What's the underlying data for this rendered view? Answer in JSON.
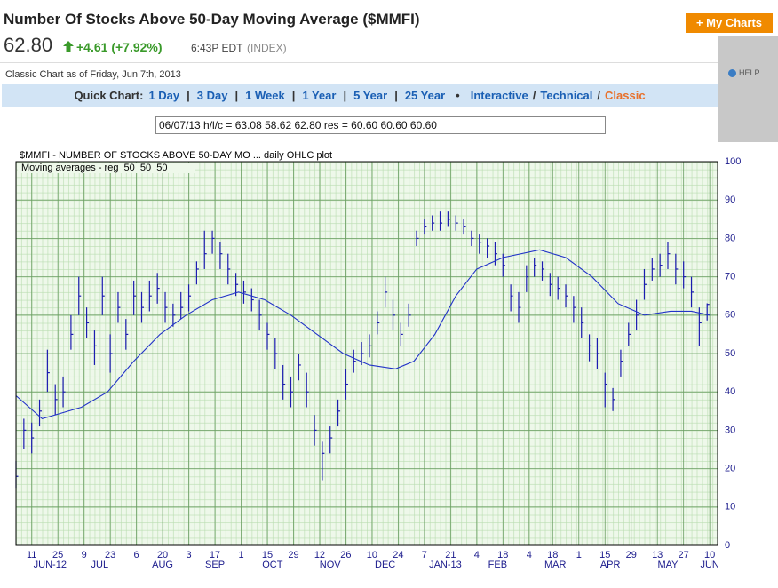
{
  "header": {
    "title": "Number Of Stocks Above 50-Day Moving Average ($MMFI)",
    "price": "62.80",
    "change": "+4.61 (+7.92%)",
    "time": "6:43P EDT",
    "exchange": "(INDEX)",
    "my_charts": "+ My Charts",
    "as_of": "Classic Chart as of Friday, Jun 7th, 2013",
    "help": "HELP"
  },
  "quick_chart": {
    "label": "Quick Chart:",
    "links": [
      "1 Day",
      "3 Day",
      "1 Week",
      "1 Year",
      "5 Year",
      "25 Year"
    ],
    "link_separator": "|",
    "bullet": "•",
    "views": [
      "Interactive",
      "Technical",
      "Classic"
    ],
    "view_separator": "/"
  },
  "info_box": "06/07/13 h/l/c = 63.08 58.62 62.80 res = 60.60 60.60 60.60",
  "chart_data": {
    "type": "ohlc",
    "title": "$MMFI - NUMBER OF STOCKS ABOVE 50-DAY MO ... daily OHLC plot",
    "subtitle": "Moving averages - reg  50  50  50",
    "xlim": [
      0,
      268
    ],
    "ylim": [
      0,
      100
    ],
    "yticks": [
      0,
      10,
      20,
      30,
      40,
      50,
      60,
      70,
      80,
      90,
      100
    ],
    "grid": true,
    "color": "#1c1cb0",
    "xticks": [
      {
        "value": 6,
        "label": "11"
      },
      {
        "value": 16,
        "label": "25"
      },
      {
        "value": 26,
        "label": "9"
      },
      {
        "value": 36,
        "label": "23"
      },
      {
        "value": 46,
        "label": "6"
      },
      {
        "value": 56,
        "label": "20"
      },
      {
        "value": 66,
        "label": "3"
      },
      {
        "value": 76,
        "label": "17"
      },
      {
        "value": 86,
        "label": "1"
      },
      {
        "value": 96,
        "label": "15"
      },
      {
        "value": 106,
        "label": "29"
      },
      {
        "value": 116,
        "label": "12"
      },
      {
        "value": 126,
        "label": "26"
      },
      {
        "value": 136,
        "label": "10"
      },
      {
        "value": 146,
        "label": "24"
      },
      {
        "value": 156,
        "label": "7"
      },
      {
        "value": 166,
        "label": "21"
      },
      {
        "value": 176,
        "label": "4"
      },
      {
        "value": 186,
        "label": "18"
      },
      {
        "value": 196,
        "label": "4"
      },
      {
        "value": 205,
        "label": "18"
      },
      {
        "value": 215,
        "label": "1"
      },
      {
        "value": 225,
        "label": "15"
      },
      {
        "value": 235,
        "label": "29"
      },
      {
        "value": 245,
        "label": "13"
      },
      {
        "value": 255,
        "label": "27"
      },
      {
        "value": 265,
        "label": "10"
      }
    ],
    "months": [
      {
        "value": 13,
        "label": "JUN-12"
      },
      {
        "value": 32,
        "label": "JUL"
      },
      {
        "value": 56,
        "label": "AUG"
      },
      {
        "value": 76,
        "label": "SEP"
      },
      {
        "value": 98,
        "label": "OCT"
      },
      {
        "value": 120,
        "label": "NOV"
      },
      {
        "value": 141,
        "label": "DEC"
      },
      {
        "value": 164,
        "label": "JAN-13"
      },
      {
        "value": 184,
        "label": "FEB"
      },
      {
        "value": 206,
        "label": "MAR"
      },
      {
        "value": 227,
        "label": "APR"
      },
      {
        "value": 249,
        "label": "MAY"
      },
      {
        "value": 265,
        "label": "JUN"
      }
    ],
    "x": [
      0,
      3,
      6,
      9,
      12,
      15,
      18,
      21,
      24,
      27,
      30,
      33,
      36,
      39,
      42,
      45,
      48,
      51,
      54,
      57,
      60,
      63,
      66,
      69,
      72,
      75,
      78,
      81,
      84,
      87,
      90,
      93,
      96,
      99,
      102,
      105,
      108,
      111,
      114,
      117,
      120,
      123,
      126,
      129,
      132,
      135,
      138,
      141,
      144,
      147,
      150,
      153,
      156,
      159,
      162,
      165,
      168,
      171,
      174,
      177,
      180,
      183,
      186,
      189,
      192,
      195,
      198,
      201,
      204,
      207,
      210,
      213,
      216,
      219,
      222,
      225,
      228,
      231,
      234,
      237,
      240,
      243,
      246,
      249,
      252,
      255,
      258,
      261,
      264
    ],
    "high": [
      22,
      33,
      32,
      38,
      51,
      42,
      44,
      60,
      70,
      62,
      56,
      70,
      55,
      66,
      59,
      69,
      66,
      69,
      71,
      66,
      63,
      66,
      68,
      74,
      82,
      82,
      79,
      76,
      71,
      69,
      67,
      64,
      58,
      54,
      47,
      44,
      50,
      45,
      34,
      27,
      31,
      38,
      46,
      51,
      53,
      55,
      61,
      70,
      64,
      58,
      63,
      82,
      85,
      86,
      87,
      87,
      86,
      85,
      82,
      81,
      80,
      79,
      76,
      68,
      66,
      73,
      75,
      74,
      71,
      70,
      68,
      65,
      62,
      55,
      54,
      45,
      41,
      51,
      58,
      64,
      72,
      75,
      76,
      79,
      76,
      74,
      70,
      62,
      63.08
    ],
    "low": [
      15,
      25,
      24,
      31,
      40,
      34,
      36,
      51,
      60,
      54,
      47,
      60,
      45,
      58,
      51,
      60,
      58,
      61,
      63,
      58,
      57,
      59,
      61,
      68,
      72,
      76,
      72,
      68,
      65,
      63,
      61,
      56,
      51,
      46,
      38,
      36,
      43,
      36,
      26,
      17,
      24,
      31,
      38,
      45,
      47,
      49,
      55,
      62,
      56,
      52,
      57,
      78,
      81,
      82,
      82,
      83,
      82,
      81,
      78,
      76,
      75,
      73,
      70,
      61,
      58,
      66,
      70,
      69,
      65,
      64,
      62,
      58,
      54,
      48,
      46,
      36,
      35,
      44,
      52,
      56,
      64,
      69,
      70,
      72,
      68,
      67,
      62,
      52,
      58.62
    ],
    "close": [
      18,
      30,
      28,
      35,
      45,
      38,
      40,
      55,
      65,
      58,
      52,
      65,
      50,
      62,
      55,
      65,
      62,
      65,
      67,
      62,
      60,
      62,
      65,
      72,
      76,
      80,
      76,
      72,
      68,
      66,
      64,
      60,
      55,
      50,
      42,
      40,
      47,
      40,
      30,
      24,
      28,
      35,
      42,
      48,
      50,
      52,
      58,
      66,
      60,
      55,
      60,
      80,
      83,
      84,
      84,
      85,
      84,
      83,
      80,
      79,
      78,
      76,
      73,
      65,
      62,
      70,
      73,
      72,
      68,
      67,
      65,
      62,
      58,
      52,
      50,
      42,
      38,
      48,
      55,
      60,
      68,
      72,
      73,
      76,
      72,
      70,
      66,
      58,
      62.8
    ],
    "moving_average": {
      "color": "#2233c8",
      "x": [
        0,
        10,
        25,
        35,
        45,
        55,
        65,
        75,
        85,
        95,
        105,
        115,
        125,
        135,
        145,
        152,
        160,
        168,
        176,
        186,
        200,
        210,
        220,
        230,
        240,
        250,
        258,
        265
      ],
      "values": [
        39,
        33,
        36,
        40,
        48,
        55,
        60,
        64,
        66,
        64,
        60,
        55,
        50,
        47,
        46,
        48,
        55,
        65,
        72,
        75,
        77,
        75,
        70,
        63,
        60,
        61,
        61,
        60
      ]
    }
  }
}
